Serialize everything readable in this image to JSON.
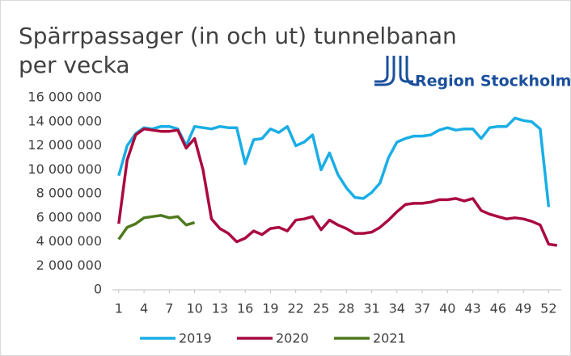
{
  "chart_data": {
    "type": "line",
    "title": "Spärrpassager (in och ut) tunnelbanan per vecka",
    "logo": "Region Stockholm",
    "x": [
      1,
      2,
      3,
      4,
      5,
      6,
      7,
      8,
      9,
      10,
      11,
      12,
      13,
      14,
      15,
      16,
      17,
      18,
      19,
      20,
      21,
      22,
      23,
      24,
      25,
      26,
      27,
      28,
      29,
      30,
      31,
      32,
      33,
      34,
      35,
      36,
      37,
      38,
      39,
      40,
      41,
      42,
      43,
      44,
      45,
      46,
      47,
      48,
      49,
      50,
      51,
      52,
      53
    ],
    "xlim": [
      0.25,
      53.5
    ],
    "xticks": [
      1,
      4,
      7,
      10,
      13,
      16,
      19,
      22,
      25,
      28,
      31,
      34,
      37,
      40,
      43,
      46,
      49,
      52
    ],
    "ylim": [
      0,
      16000000
    ],
    "yticks": [
      0,
      {
        "value": 2000000,
        "label": "2 000 000"
      },
      {
        "value": 4000000,
        "label": "4 000 000"
      },
      {
        "value": 6000000,
        "label": "6 000 000"
      },
      {
        "value": 8000000,
        "label": "8 000 000"
      },
      {
        "value": 10000000,
        "label": "10 000 000"
      },
      {
        "value": 12000000,
        "label": "12 000 000"
      },
      {
        "value": 14000000,
        "label": "14 000 000"
      },
      {
        "value": 16000000,
        "label": "16 000 000"
      }
    ],
    "grid": false,
    "legend": "bottom",
    "series": [
      {
        "name": "2019",
        "color": "#1aaee6",
        "values": [
          9500000,
          12000000,
          13000000,
          13500000,
          13400000,
          13600000,
          13600000,
          13400000,
          12000000,
          13600000,
          13500000,
          13400000,
          13600000,
          13500000,
          13500000,
          10500000,
          12500000,
          12600000,
          13400000,
          13100000,
          13600000,
          12000000,
          12300000,
          12900000,
          10000000,
          11400000,
          9600000,
          8500000,
          7700000,
          7600000,
          8100000,
          8900000,
          11000000,
          12300000,
          12600000,
          12800000,
          12800000,
          12900000,
          13300000,
          13500000,
          13300000,
          13400000,
          13400000,
          12600000,
          13500000,
          13600000,
          13600000,
          14300000,
          14100000,
          14000000,
          13400000,
          6900000,
          null
        ]
      },
      {
        "name": "2020",
        "color": "#aa0a3e",
        "values": [
          5500000,
          10800000,
          12900000,
          13400000,
          13300000,
          13200000,
          13200000,
          13300000,
          11800000,
          12600000,
          10000000,
          5900000,
          5100000,
          4700000,
          4000000,
          4300000,
          4900000,
          4600000,
          5100000,
          5200000,
          4900000,
          5800000,
          5900000,
          6100000,
          5000000,
          5800000,
          5400000,
          5100000,
          4700000,
          4700000,
          4800000,
          5200000,
          5800000,
          6500000,
          7100000,
          7200000,
          7200000,
          7300000,
          7500000,
          7500000,
          7600000,
          7400000,
          7600000,
          6600000,
          6300000,
          6100000,
          5900000,
          6000000,
          5900000,
          5700000,
          5400000,
          3800000,
          3700000
        ]
      },
      {
        "name": "2021",
        "color": "#4e7a1f",
        "values": [
          4200000,
          5200000,
          5500000,
          6000000,
          6100000,
          6200000,
          6000000,
          6100000,
          5400000,
          5600000,
          null,
          null,
          null,
          null,
          null,
          null,
          null,
          null,
          null,
          null,
          null,
          null,
          null,
          null,
          null,
          null,
          null,
          null,
          null,
          null,
          null,
          null,
          null,
          null,
          null,
          null,
          null,
          null,
          null,
          null,
          null,
          null,
          null,
          null,
          null,
          null,
          null,
          null,
          null,
          null,
          null,
          null,
          null
        ]
      }
    ]
  }
}
